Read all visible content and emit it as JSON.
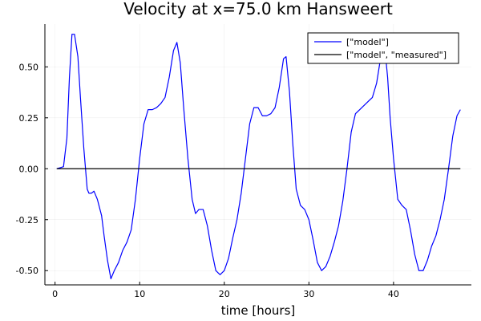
{
  "chart_data": {
    "type": "line",
    "title": "Velocity at x=75.0 km Hansweert",
    "xlabel": "time [hours]",
    "ylabel": "",
    "xlim": [
      -1.2,
      49.2
    ],
    "ylim": [
      -0.57,
      0.71
    ],
    "x_ticks": [
      0,
      10,
      20,
      30,
      40
    ],
    "x_tick_labels": [
      "0",
      "10",
      "20",
      "30",
      "40"
    ],
    "y_ticks": [
      -0.5,
      -0.25,
      0.0,
      0.25,
      0.5
    ],
    "y_tick_labels": [
      "-0.50",
      "-0.25",
      "0.00",
      "0.25",
      "0.50"
    ],
    "grid": true,
    "legend_position": "top-right",
    "series": [
      {
        "name": "[\"model\"]",
        "color": "#0000ff",
        "x": [
          0.2,
          1.0,
          1.4,
          1.7,
          2.0,
          2.3,
          2.7,
          3.0,
          3.4,
          3.8,
          4.0,
          4.3,
          4.6,
          5.0,
          5.5,
          5.8,
          6.2,
          6.6,
          7.0,
          7.5,
          8.0,
          8.5,
          9.0,
          9.5,
          10.0,
          10.5,
          11.0,
          11.5,
          12.0,
          12.5,
          13.0,
          13.5,
          14.0,
          14.4,
          14.8,
          15.2,
          15.7,
          16.2,
          16.6,
          17.0,
          17.5,
          18.0,
          18.5,
          19.0,
          19.5,
          20.0,
          20.5,
          21.0,
          21.5,
          22.0,
          22.5,
          23.0,
          23.5,
          24.0,
          24.5,
          25.0,
          25.5,
          26.0,
          26.5,
          27.0,
          27.3,
          27.7,
          28.1,
          28.5,
          29.0,
          29.5,
          30.0,
          30.5,
          31.0,
          31.5,
          32.0,
          32.5,
          33.0,
          33.5,
          34.0,
          34.5,
          35.0,
          35.5,
          36.0,
          36.5,
          37.0,
          37.5,
          38.0,
          38.5,
          39.0,
          39.3,
          39.6,
          40.0,
          40.5,
          41.0,
          41.5,
          42.0,
          42.5,
          43.0,
          43.5,
          44.0,
          44.5,
          45.0,
          45.5,
          46.0,
          46.5,
          47.0,
          47.5,
          47.9
        ],
        "y": [
          0.0,
          0.01,
          0.15,
          0.45,
          0.66,
          0.66,
          0.55,
          0.35,
          0.1,
          -0.1,
          -0.12,
          -0.12,
          -0.11,
          -0.15,
          -0.23,
          -0.33,
          -0.45,
          -0.54,
          -0.5,
          -0.46,
          -0.4,
          -0.36,
          -0.3,
          -0.15,
          0.05,
          0.22,
          0.29,
          0.29,
          0.3,
          0.32,
          0.35,
          0.45,
          0.58,
          0.62,
          0.52,
          0.3,
          0.05,
          -0.15,
          -0.22,
          -0.2,
          -0.2,
          -0.28,
          -0.4,
          -0.5,
          -0.52,
          -0.5,
          -0.44,
          -0.34,
          -0.25,
          -0.12,
          0.05,
          0.22,
          0.3,
          0.3,
          0.26,
          0.26,
          0.27,
          0.3,
          0.4,
          0.54,
          0.55,
          0.38,
          0.12,
          -0.1,
          -0.18,
          -0.2,
          -0.25,
          -0.35,
          -0.46,
          -0.5,
          -0.48,
          -0.43,
          -0.36,
          -0.28,
          -0.16,
          0.0,
          0.18,
          0.27,
          0.29,
          0.31,
          0.33,
          0.35,
          0.42,
          0.55,
          0.58,
          0.45,
          0.25,
          0.05,
          -0.15,
          -0.18,
          -0.2,
          -0.3,
          -0.42,
          -0.5,
          -0.5,
          -0.45,
          -0.38,
          -0.33,
          -0.25,
          -0.15,
          0.0,
          0.16,
          0.26,
          0.29
        ]
      },
      {
        "name": "[\"model\", \"measured\"]",
        "color": "#000000",
        "x": [
          0.2,
          47.9
        ],
        "y": [
          0.0,
          0.0
        ]
      }
    ]
  }
}
